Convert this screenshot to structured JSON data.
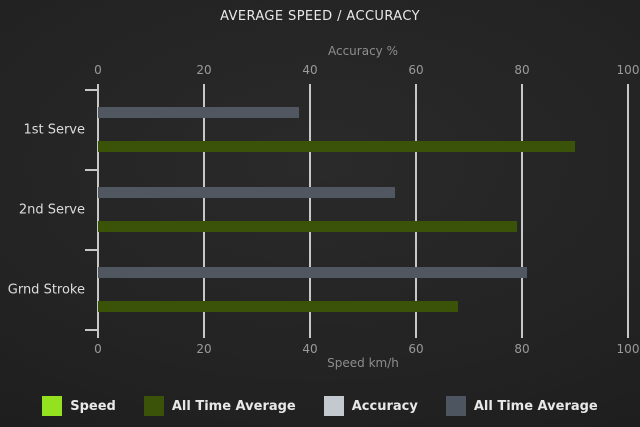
{
  "title": "AVERAGE SPEED / ACCURACY",
  "chart_data": {
    "type": "bar",
    "orientation": "horizontal",
    "categories": [
      "1st Serve",
      "2nd Serve",
      "Grnd Stroke"
    ],
    "series": [
      {
        "name": "All Time Average",
        "measure": "Accuracy",
        "color": "#515760",
        "values": [
          38,
          56,
          81
        ]
      },
      {
        "name": "All Time Average",
        "measure": "Speed",
        "color": "#3b5309",
        "values": [
          90,
          79,
          68
        ]
      }
    ],
    "top_axis": {
      "label": "Accuracy %",
      "ticks": [
        0,
        20,
        40,
        60,
        80,
        100
      ]
    },
    "bottom_axis": {
      "label": "Speed km/h",
      "ticks": [
        0,
        20,
        40,
        60,
        80,
        100
      ]
    },
    "xlim": [
      0,
      100
    ],
    "grid": "vertical",
    "legend_position": "bottom"
  },
  "legend": {
    "items": [
      {
        "label": "Speed",
        "color": "#93e11f"
      },
      {
        "label": "All Time Average",
        "color": "#3b5309"
      },
      {
        "label": "Accuracy",
        "color": "#c3c9cf"
      },
      {
        "label": "All Time Average",
        "color": "#4d5560"
      }
    ]
  },
  "colors": {
    "background": "#212121",
    "gridline": "#c7c7c7",
    "title_text": "#e9e9e9",
    "axis_text": "#9a9a9a"
  }
}
